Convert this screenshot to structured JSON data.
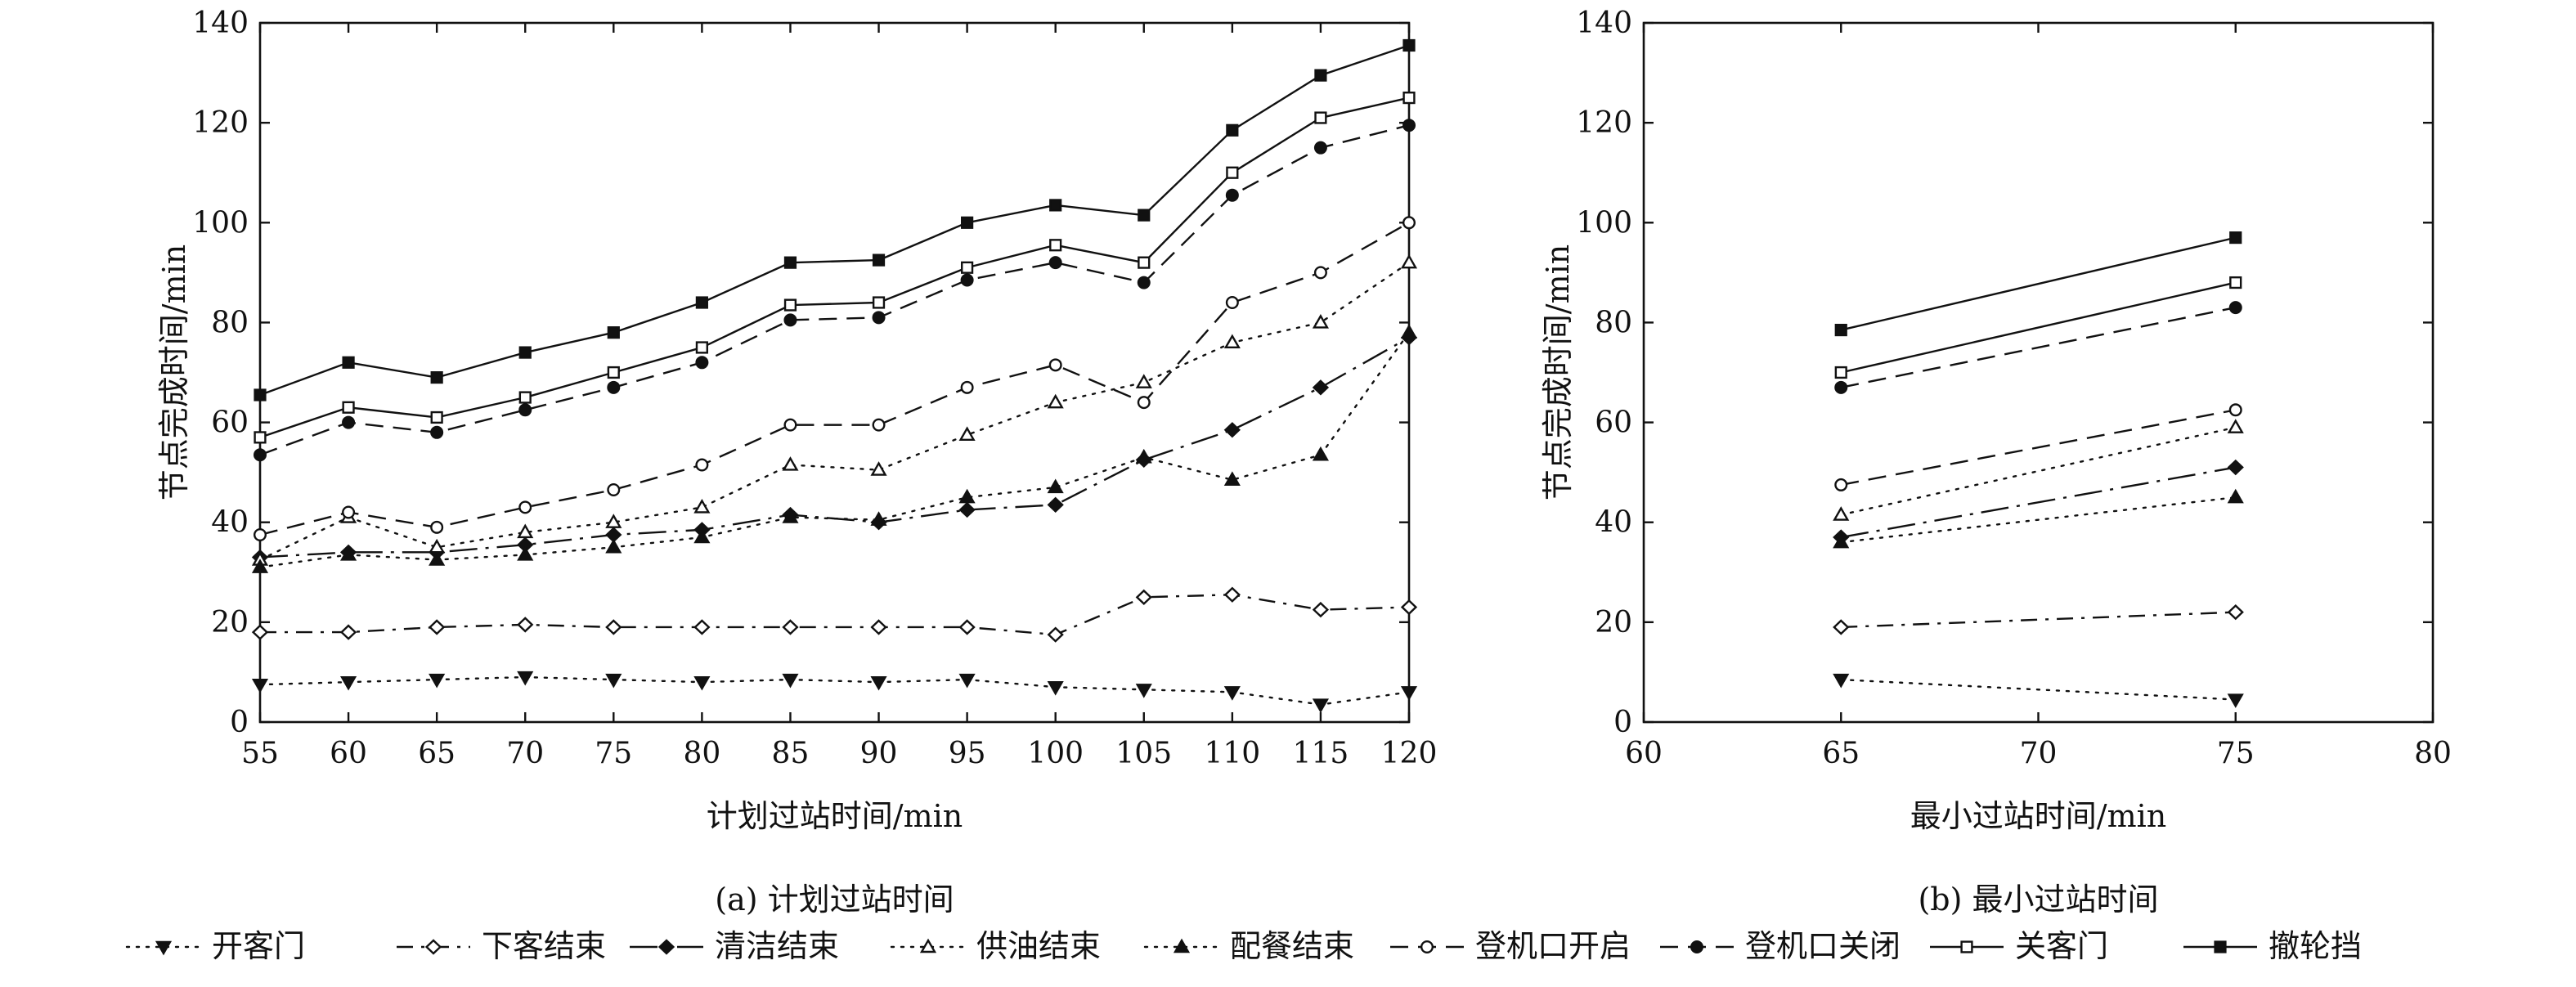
{
  "legend": {
    "items": [
      {
        "label": "开客门",
        "marker": "triangle-down-filled",
        "dash": "dotted"
      },
      {
        "label": "下客结束",
        "marker": "diamond-open",
        "dash": "dashdot"
      },
      {
        "label": "清洁结束",
        "marker": "diamond-filled",
        "dash": "longdashdot"
      },
      {
        "label": "供油结束",
        "marker": "triangle-up-open",
        "dash": "dotted"
      },
      {
        "label": "配餐结束",
        "marker": "triangle-up-filled",
        "dash": "dotted"
      },
      {
        "label": "登机口开启",
        "marker": "circle-open",
        "dash": "dashed"
      },
      {
        "label": "登机口关闭",
        "marker": "circle-filled",
        "dash": "dashed"
      },
      {
        "label": "关客门",
        "marker": "square-open",
        "dash": "solid"
      },
      {
        "label": "撤轮挡",
        "marker": "square-filled",
        "dash": "solid"
      }
    ]
  },
  "chart_data": [
    {
      "type": "line",
      "caption": "(a) 计划过站时间",
      "xlabel": "计划过站时间/min",
      "ylabel": "节点完成时间/min",
      "xlim": [
        55,
        120
      ],
      "ylim": [
        0,
        140
      ],
      "xticks": [
        55,
        60,
        65,
        70,
        75,
        80,
        85,
        90,
        95,
        100,
        105,
        110,
        115,
        120
      ],
      "yticks": [
        0,
        20,
        40,
        60,
        80,
        100,
        120,
        140
      ],
      "x": [
        55,
        60,
        65,
        70,
        75,
        80,
        85,
        90,
        95,
        100,
        105,
        110,
        115,
        120
      ],
      "series": [
        {
          "name": "开客门",
          "values": [
            7.5,
            8,
            8.5,
            9,
            8.5,
            8,
            8.5,
            8,
            8.5,
            7,
            6.5,
            6,
            3.5,
            6
          ]
        },
        {
          "name": "下客结束",
          "values": [
            18,
            18,
            19,
            19.5,
            19,
            19,
            19,
            19,
            19,
            17.5,
            25,
            25.5,
            22.5,
            23
          ]
        },
        {
          "name": "清洁结束",
          "values": [
            33,
            34,
            34,
            35.5,
            37.5,
            38.5,
            41.5,
            40,
            42.5,
            43.5,
            52.5,
            58.5,
            67,
            77
          ]
        },
        {
          "name": "供油结束",
          "values": [
            32.5,
            41,
            35,
            38,
            40,
            43,
            51.5,
            50.5,
            57.5,
            64,
            68,
            76,
            80,
            92
          ]
        },
        {
          "name": "配餐结束",
          "values": [
            31,
            33.5,
            32.5,
            33.5,
            35,
            37,
            41,
            40.5,
            45,
            47,
            53,
            48.5,
            53.5,
            78
          ]
        },
        {
          "name": "登机口开启",
          "values": [
            37.5,
            42,
            39,
            43,
            46.5,
            51.5,
            59.5,
            59.5,
            67,
            71.5,
            64,
            84,
            90,
            100
          ]
        },
        {
          "name": "登机口关闭",
          "values": [
            53.5,
            60,
            58,
            62.5,
            67,
            72,
            80.5,
            81,
            88.5,
            92,
            88,
            105.5,
            115,
            119.5
          ]
        },
        {
          "name": "关客门",
          "values": [
            57,
            63,
            61,
            65,
            70,
            75,
            83.5,
            84,
            91,
            95.5,
            92,
            110,
            121,
            125
          ]
        },
        {
          "name": "撤轮挡",
          "values": [
            65.5,
            72,
            69,
            74,
            78,
            84,
            92,
            92.5,
            100,
            103.5,
            101.5,
            118.5,
            129.5,
            135.5
          ]
        }
      ]
    },
    {
      "type": "line",
      "caption": "(b) 最小过站时间",
      "xlabel": "最小过站时间/min",
      "ylabel": "节点完成时间/min",
      "xlim": [
        60,
        80
      ],
      "ylim": [
        0,
        140
      ],
      "xticks": [
        60,
        65,
        70,
        75,
        80
      ],
      "yticks": [
        0,
        20,
        40,
        60,
        80,
        100,
        120,
        140
      ],
      "x": [
        65,
        75
      ],
      "series": [
        {
          "name": "开客门",
          "values": [
            8.5,
            4.5
          ]
        },
        {
          "name": "下客结束",
          "values": [
            19,
            22
          ]
        },
        {
          "name": "清洁结束",
          "values": [
            37,
            51
          ]
        },
        {
          "name": "供油结束",
          "values": [
            41.5,
            59
          ]
        },
        {
          "name": "配餐结束",
          "values": [
            36,
            45
          ]
        },
        {
          "name": "登机口开启",
          "values": [
            47.5,
            62.5
          ]
        },
        {
          "name": "登机口关闭",
          "values": [
            67,
            83
          ]
        },
        {
          "name": "关客门",
          "values": [
            70,
            88
          ]
        },
        {
          "name": "撤轮挡",
          "values": [
            78.5,
            97
          ]
        }
      ]
    }
  ]
}
